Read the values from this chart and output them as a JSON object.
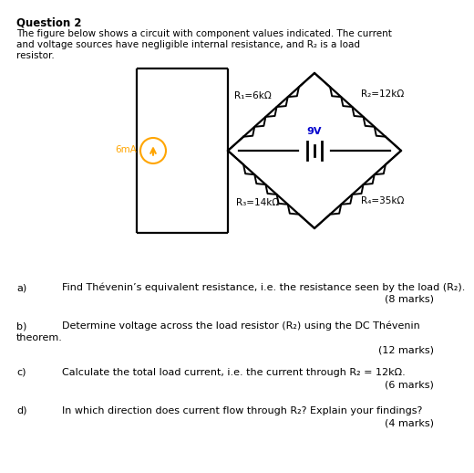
{
  "title": "Question 2",
  "intro_line1": "The figure below shows a circuit with component values indicated. The current",
  "intro_line2": "and voltage sources have negligible internal resistance, and R₂ is a load",
  "intro_line3": "resistor.",
  "R1_label": "R₁=6kΩ",
  "R2_label": "R₂=12kΩ",
  "R3_label": "R₃=14kΩ",
  "R4_label": "R₄=35kΩ",
  "voltage_label": "9V",
  "current_label": "6mA",
  "qa_letter": "a)",
  "qa_text": "Find Thévenin’s equivalent resistance, i.e. the resistance seen by the load (R₂).",
  "qa_marks": "(8 marks)",
  "qb_letter": "b)",
  "qb_text1": "Determine voltage across the load resistor (R₂) using the DC Thévenin",
  "qb_text2": "theorem.",
  "qb_marks": "(12 marks)",
  "qc_letter": "c)",
  "qc_text": "Calculate the total load current, i.e. the current through R₂ = 12kΩ.",
  "qc_marks": "(6 marks)",
  "qd_letter": "d)",
  "qd_text": "In which direction does current flow through R₂? Explain your findings?",
  "qd_marks": "(4 marks)",
  "bg_color": "#ffffff",
  "text_color": "#000000",
  "orange_color": "#FFA500",
  "blue_color": "#0000CD"
}
